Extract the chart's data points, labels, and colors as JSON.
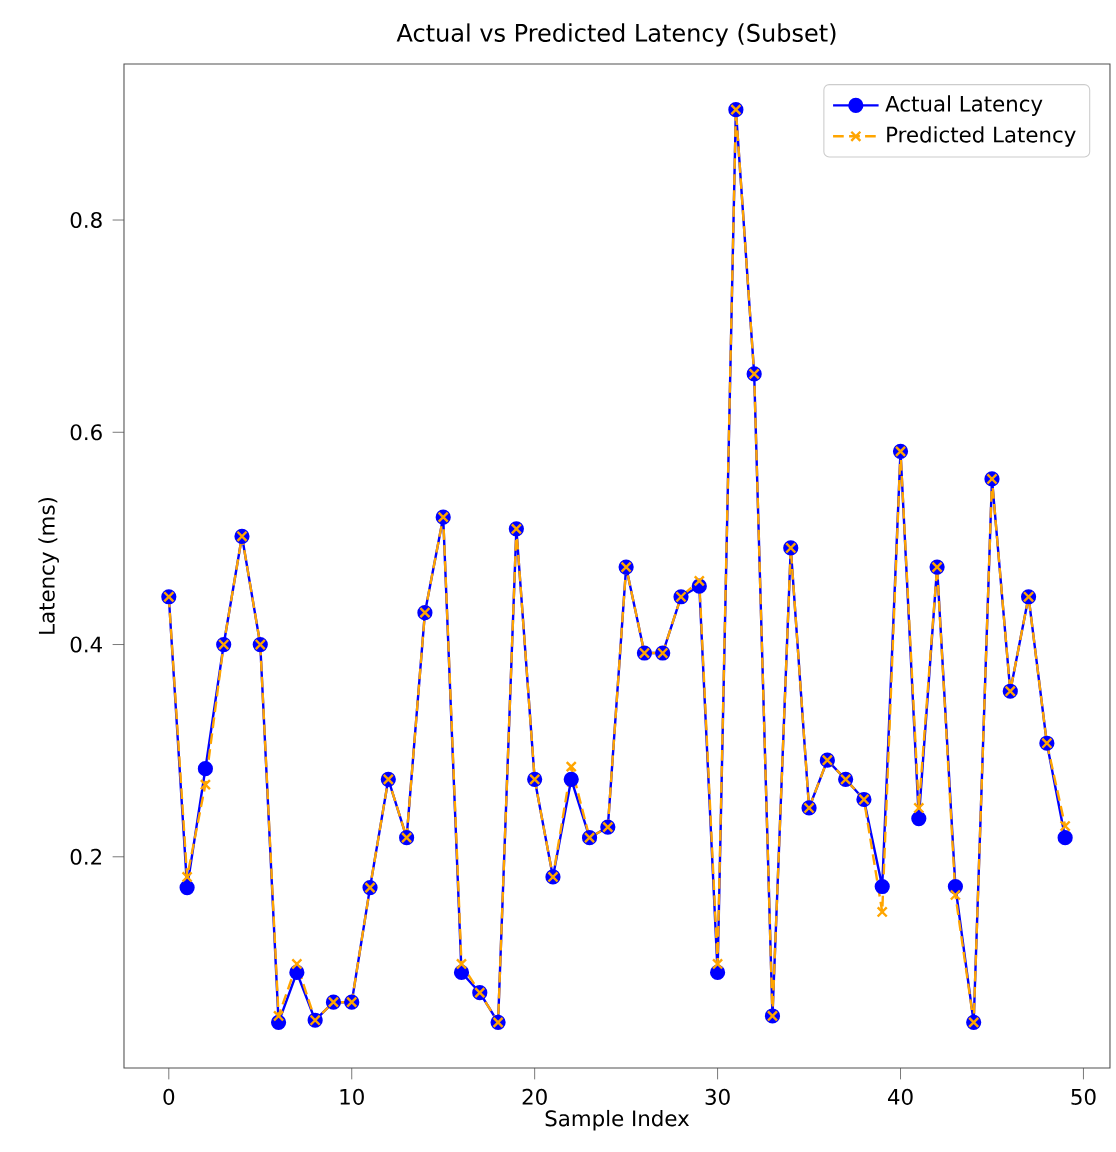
{
  "chart_data": {
    "type": "line",
    "title": "Actual vs Predicted Latency (Subset)",
    "xlabel": "Sample Index",
    "ylabel": "Latency (ms)",
    "x": [
      0,
      1,
      2,
      3,
      4,
      5,
      6,
      7,
      8,
      9,
      10,
      11,
      12,
      13,
      14,
      15,
      16,
      17,
      18,
      19,
      20,
      21,
      22,
      23,
      24,
      25,
      26,
      27,
      28,
      29,
      30,
      31,
      32,
      33,
      34,
      35,
      36,
      37,
      38,
      39,
      40,
      41,
      42,
      43,
      44,
      45,
      46,
      47,
      48,
      49
    ],
    "series": [
      {
        "name": "Actual Latency",
        "color": "#0000ff",
        "marker": "circle",
        "line_style": "solid",
        "values": [
          0.445,
          0.171,
          0.283,
          0.4,
          0.502,
          0.4,
          0.044,
          0.091,
          0.046,
          0.063,
          0.063,
          0.171,
          0.273,
          0.218,
          0.43,
          0.52,
          0.091,
          0.072,
          0.044,
          0.509,
          0.273,
          0.181,
          0.273,
          0.218,
          0.228,
          0.473,
          0.392,
          0.392,
          0.445,
          0.455,
          0.091,
          0.904,
          0.655,
          0.05,
          0.491,
          0.246,
          0.291,
          0.273,
          0.254,
          0.172,
          0.582,
          0.236,
          0.473,
          0.172,
          0.044,
          0.556,
          0.356,
          0.445,
          0.307,
          0.218
        ]
      },
      {
        "name": "Predicted Latency",
        "color": "#ffa500",
        "marker": "cross",
        "line_style": "dashed",
        "values": [
          0.445,
          0.181,
          0.268,
          0.4,
          0.502,
          0.4,
          0.05,
          0.099,
          0.046,
          0.063,
          0.063,
          0.171,
          0.273,
          0.218,
          0.43,
          0.52,
          0.099,
          0.072,
          0.044,
          0.509,
          0.273,
          0.181,
          0.285,
          0.218,
          0.228,
          0.473,
          0.392,
          0.392,
          0.445,
          0.46,
          0.099,
          0.904,
          0.655,
          0.05,
          0.491,
          0.246,
          0.291,
          0.273,
          0.254,
          0.148,
          0.582,
          0.246,
          0.473,
          0.164,
          0.044,
          0.556,
          0.356,
          0.445,
          0.307,
          0.229
        ]
      }
    ],
    "xlim": [
      -2.45,
      51.45
    ],
    "ylim": [
      0.001,
      0.947
    ],
    "xticks": [
      0,
      10,
      20,
      30,
      40,
      50
    ],
    "yticks": [
      0.2,
      0.4,
      0.6,
      0.8
    ],
    "legend": "top right",
    "grid": false
  }
}
